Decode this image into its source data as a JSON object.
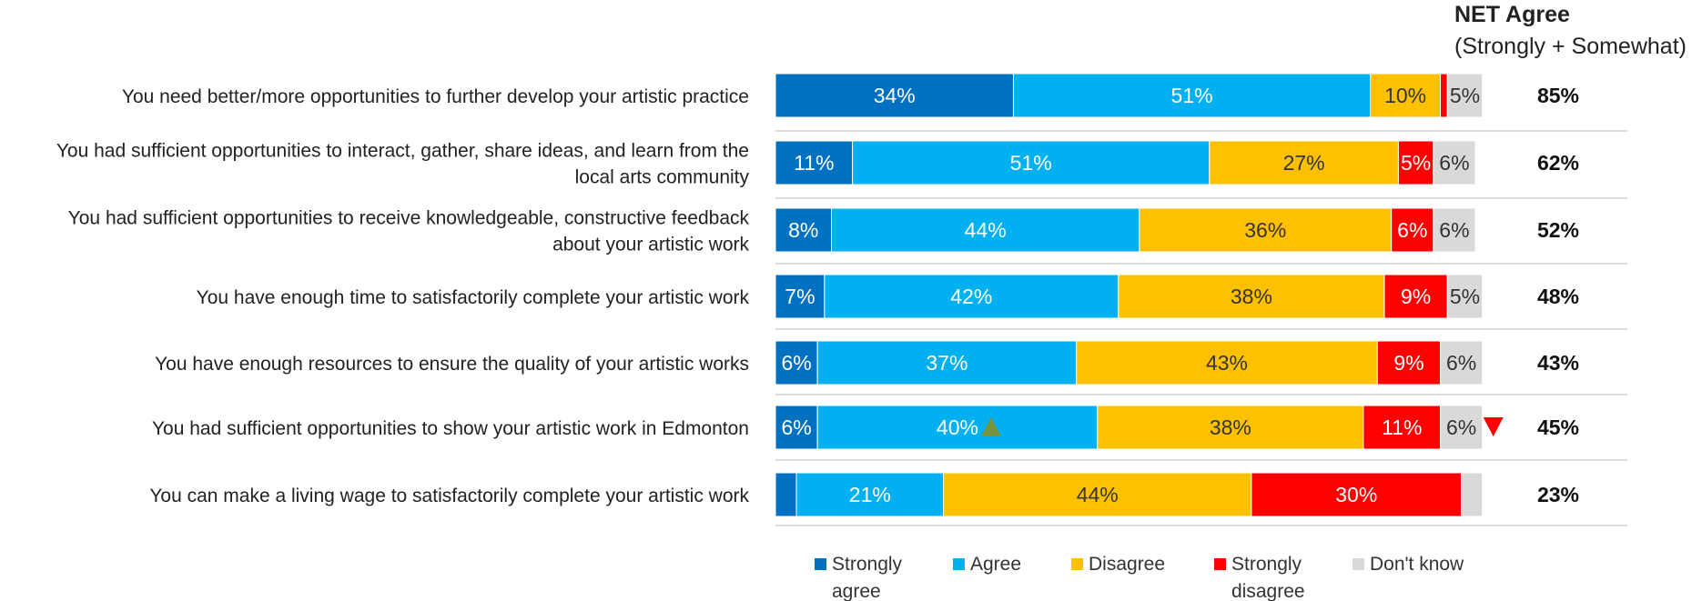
{
  "header": {
    "net_title": "NET Agree",
    "net_subtitle": "(Strongly + Somewhat)"
  },
  "chart_data": {
    "type": "bar",
    "orientation": "horizontal",
    "stacked": true,
    "title": "",
    "xlabel": "",
    "ylabel": "",
    "xlim": [
      0,
      100
    ],
    "legend_position": "bottom",
    "colors": {
      "Strongly agree": "#0070c0",
      "Agree": "#00b0f0",
      "Disagree": "#ffc000",
      "Strongly disagree": "#ff0000",
      "Don't know": "#d9d9d9"
    },
    "series": [
      {
        "name": "Strongly agree",
        "values": [
          34,
          11,
          8,
          7,
          6,
          6,
          3
        ]
      },
      {
        "name": "Agree",
        "values": [
          51,
          51,
          44,
          42,
          37,
          40,
          21
        ]
      },
      {
        "name": "Disagree",
        "values": [
          10,
          27,
          36,
          38,
          43,
          38,
          44
        ]
      },
      {
        "name": "Strongly disagree",
        "values": [
          1,
          5,
          6,
          9,
          9,
          11,
          30
        ]
      },
      {
        "name": "Don't know",
        "values": [
          5,
          6,
          6,
          5,
          6,
          6,
          3
        ]
      }
    ],
    "labels": [
      [
        "34%",
        "51%",
        "10%",
        "",
        "5%"
      ],
      [
        "11%",
        "51%",
        "27%",
        "5%",
        "6%"
      ],
      [
        "8%",
        "44%",
        "36%",
        "6%",
        "6%"
      ],
      [
        "7%",
        "42%",
        "38%",
        "9%",
        "5%"
      ],
      [
        "6%",
        "37%",
        "43%",
        "9%",
        "6%"
      ],
      [
        "6%",
        "40%",
        "38%",
        "11%",
        "6%"
      ],
      [
        "",
        "21%",
        "44%",
        "30%",
        ""
      ]
    ],
    "categories": [
      [
        "You need better/more opportunities to further develop your artistic practice"
      ],
      [
        "You had sufficient opportunities to interact, gather, share ideas, and learn from the",
        "local arts community"
      ],
      [
        "You had sufficient opportunities to receive knowledgeable, constructive feedback",
        "about your artistic work"
      ],
      [
        "You  have enough time to satisfactorily complete your artistic work"
      ],
      [
        "You  have enough resources to ensure the quality of your artistic works"
      ],
      [
        "You had sufficient opportunities to show your artistic work in Edmonton"
      ],
      [
        "You can make a living wage to satisfactorily complete your artistic work"
      ]
    ],
    "net_agree": [
      "85%",
      "62%",
      "52%",
      "48%",
      "43%",
      "45%",
      "23%"
    ],
    "significance_markers": [
      {
        "row": 5,
        "series": 1,
        "direction": "up",
        "color": "#77933c"
      },
      {
        "row": 5,
        "series": 4,
        "direction": "down",
        "color": "#ff0000"
      }
    ],
    "legend": [
      {
        "lines": [
          "Strongly",
          "agree"
        ],
        "color": "#0070c0"
      },
      {
        "lines": [
          "Agree"
        ],
        "color": "#00b0f0"
      },
      {
        "lines": [
          "Disagree"
        ],
        "color": "#ffc000"
      },
      {
        "lines": [
          "Strongly",
          "disagree"
        ],
        "color": "#ff0000"
      },
      {
        "lines": [
          "Don't know"
        ],
        "color": "#d9d9d9"
      }
    ]
  }
}
